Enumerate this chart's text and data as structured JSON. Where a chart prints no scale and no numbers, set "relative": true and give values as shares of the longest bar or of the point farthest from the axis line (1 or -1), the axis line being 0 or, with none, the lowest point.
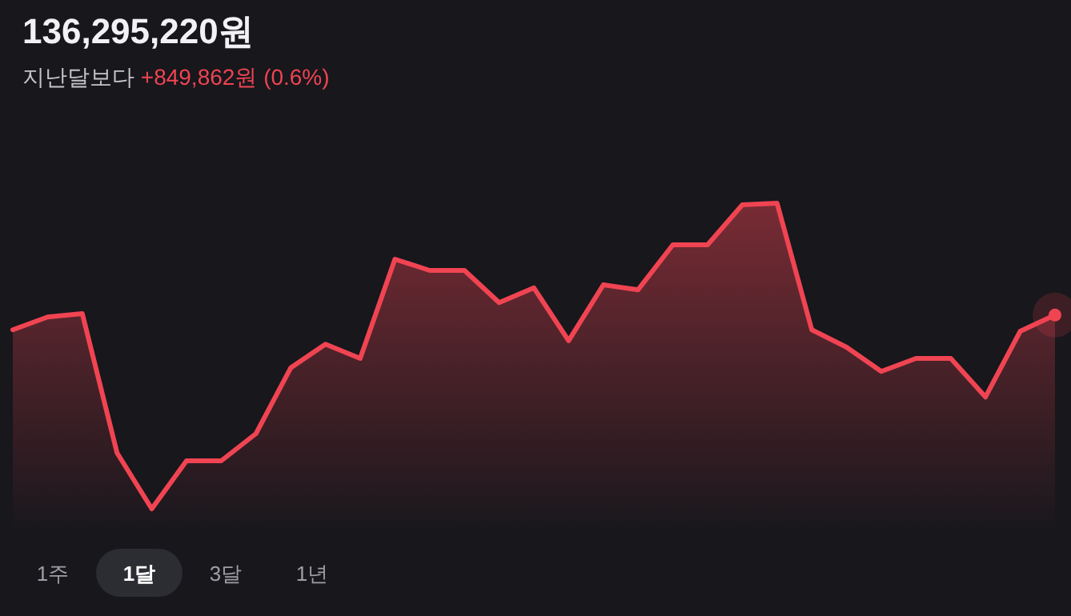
{
  "chart_data": {
    "type": "area",
    "title": "136,295,220원",
    "subtitle": "지난달보다",
    "annotations": [
      "+849,862원 (0.6%)",
      "1주",
      "1달",
      "3달",
      "1년"
    ],
    "relative": true,
    "categories": [
      null,
      null,
      null,
      null,
      null,
      null,
      null,
      null,
      null,
      null,
      null,
      null,
      null,
      null,
      null,
      null,
      null,
      null,
      null,
      null,
      null,
      null,
      null,
      null,
      null,
      null,
      null,
      null,
      null,
      null,
      null
    ],
    "series": [
      {
        "color": "#f04452",
        "values": [
          0.586,
          0.628,
          0.639,
          0.183,
          0,
          0.157,
          0.157,
          0.246,
          0.461,
          0.539,
          0.492,
          0.817,
          0.78,
          0.78,
          0.675,
          0.723,
          0.55,
          0.733,
          0.717,
          0.864,
          0.864,
          0.995,
          1,
          0.586,
          0.529,
          0.45,
          0.492,
          0.492,
          0.366,
          0.581,
          0.634
        ]
      }
    ],
    "line_style": "solid"
  }
}
